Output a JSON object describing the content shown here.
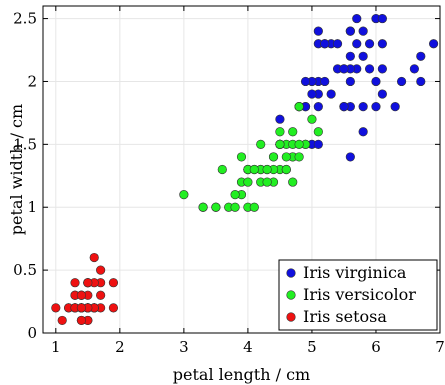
{
  "chart_data": {
    "type": "scatter",
    "title": "",
    "xlabel": "petal length / cm",
    "ylabel": "petal width / cm",
    "xlim": [
      0.8,
      7.0
    ],
    "ylim": [
      0,
      2.6
    ],
    "xticks": [
      1,
      2,
      3,
      4,
      5,
      6,
      7
    ],
    "xtick_labels": [
      "1",
      "2",
      "3",
      "4",
      "5",
      "6",
      "7"
    ],
    "yticks": [
      0,
      0.5,
      1,
      1.5,
      2,
      2.5
    ],
    "ytick_labels": [
      "0",
      "0.5",
      "1",
      "1.5",
      "2",
      "2.5"
    ],
    "grid": true,
    "legend_position": "bottom-right",
    "series": [
      {
        "name": "Iris virginica",
        "color": "#1010dd",
        "points": [
          [
            6.0,
            2.5
          ],
          [
            5.1,
            1.9
          ],
          [
            5.9,
            2.1
          ],
          [
            5.6,
            1.8
          ],
          [
            5.8,
            2.2
          ],
          [
            6.6,
            2.1
          ],
          [
            4.5,
            1.7
          ],
          [
            6.3,
            1.8
          ],
          [
            5.8,
            1.8
          ],
          [
            6.1,
            2.5
          ],
          [
            5.1,
            2.0
          ],
          [
            5.3,
            1.9
          ],
          [
            5.5,
            2.1
          ],
          [
            5.0,
            2.0
          ],
          [
            5.1,
            2.4
          ],
          [
            5.3,
            2.3
          ],
          [
            5.5,
            1.8
          ],
          [
            6.7,
            2.2
          ],
          [
            6.9,
            2.3
          ],
          [
            5.0,
            1.5
          ],
          [
            5.7,
            2.3
          ],
          [
            4.9,
            2.0
          ],
          [
            6.7,
            2.0
          ],
          [
            4.9,
            1.8
          ],
          [
            5.7,
            2.1
          ],
          [
            6.0,
            1.8
          ],
          [
            4.8,
            1.8
          ],
          [
            4.9,
            1.8
          ],
          [
            5.6,
            2.1
          ],
          [
            5.8,
            1.6
          ],
          [
            6.1,
            1.9
          ],
          [
            6.4,
            2.0
          ],
          [
            5.6,
            2.2
          ],
          [
            5.1,
            1.5
          ],
          [
            5.6,
            1.4
          ],
          [
            6.1,
            2.3
          ],
          [
            5.6,
            2.4
          ],
          [
            5.5,
            1.8
          ],
          [
            4.8,
            1.8
          ],
          [
            5.4,
            2.1
          ],
          [
            5.6,
            2.4
          ],
          [
            5.1,
            2.3
          ],
          [
            5.9,
            2.3
          ],
          [
            5.7,
            2.5
          ],
          [
            5.2,
            2.3
          ],
          [
            5.0,
            1.9
          ],
          [
            5.2,
            2.0
          ],
          [
            5.4,
            2.3
          ],
          [
            5.1,
            1.8
          ],
          [
            5.8,
            2.4
          ],
          [
            6.0,
            2.0
          ],
          [
            5.5,
            2.1
          ],
          [
            6.1,
            2.1
          ],
          [
            5.2,
            2.3
          ],
          [
            5.6,
            2.0
          ]
        ]
      },
      {
        "name": "Iris versicolor",
        "color": "#22ee22",
        "points": [
          [
            4.7,
            1.4
          ],
          [
            4.5,
            1.5
          ],
          [
            4.9,
            1.5
          ],
          [
            4.0,
            1.3
          ],
          [
            4.6,
            1.5
          ],
          [
            4.5,
            1.3
          ],
          [
            4.7,
            1.6
          ],
          [
            3.3,
            1.0
          ],
          [
            4.6,
            1.3
          ],
          [
            3.9,
            1.4
          ],
          [
            3.5,
            1.0
          ],
          [
            4.2,
            1.5
          ],
          [
            4.0,
            1.0
          ],
          [
            4.7,
            1.4
          ],
          [
            3.6,
            1.3
          ],
          [
            4.4,
            1.4
          ],
          [
            4.5,
            1.5
          ],
          [
            4.1,
            1.0
          ],
          [
            4.5,
            1.5
          ],
          [
            3.9,
            1.1
          ],
          [
            4.8,
            1.8
          ],
          [
            4.0,
            1.3
          ],
          [
            4.9,
            1.5
          ],
          [
            4.7,
            1.2
          ],
          [
            4.3,
            1.3
          ],
          [
            4.4,
            1.4
          ],
          [
            4.8,
            1.4
          ],
          [
            5.0,
            1.7
          ],
          [
            4.5,
            1.5
          ],
          [
            3.5,
            1.0
          ],
          [
            3.8,
            1.1
          ],
          [
            3.7,
            1.0
          ],
          [
            3.9,
            1.2
          ],
          [
            5.1,
            1.6
          ],
          [
            4.5,
            1.5
          ],
          [
            4.5,
            1.6
          ],
          [
            4.7,
            1.5
          ],
          [
            4.4,
            1.3
          ],
          [
            4.1,
            1.3
          ],
          [
            4.0,
            1.3
          ],
          [
            4.4,
            1.2
          ],
          [
            4.6,
            1.4
          ],
          [
            4.0,
            1.2
          ],
          [
            3.3,
            1.0
          ],
          [
            4.2,
            1.3
          ],
          [
            4.2,
            1.2
          ],
          [
            4.2,
            1.3
          ],
          [
            4.3,
            1.3
          ],
          [
            3.0,
            1.1
          ],
          [
            4.1,
            1.3
          ],
          [
            3.8,
            1.0
          ],
          [
            4.6,
            1.3
          ],
          [
            4.8,
            1.5
          ],
          [
            4.3,
            1.2
          ]
        ]
      },
      {
        "name": "Iris setosa",
        "color": "#ee1111",
        "points": [
          [
            1.4,
            0.2
          ],
          [
            1.4,
            0.2
          ],
          [
            1.3,
            0.2
          ],
          [
            1.5,
            0.2
          ],
          [
            1.4,
            0.2
          ],
          [
            1.7,
            0.4
          ],
          [
            1.4,
            0.3
          ],
          [
            1.5,
            0.2
          ],
          [
            1.4,
            0.2
          ],
          [
            1.5,
            0.1
          ],
          [
            1.5,
            0.2
          ],
          [
            1.6,
            0.2
          ],
          [
            1.4,
            0.1
          ],
          [
            1.1,
            0.1
          ],
          [
            1.2,
            0.2
          ],
          [
            1.5,
            0.4
          ],
          [
            1.3,
            0.4
          ],
          [
            1.4,
            0.3
          ],
          [
            1.7,
            0.3
          ],
          [
            1.5,
            0.3
          ],
          [
            1.7,
            0.2
          ],
          [
            1.5,
            0.4
          ],
          [
            1.0,
            0.2
          ],
          [
            1.7,
            0.5
          ],
          [
            1.9,
            0.2
          ],
          [
            1.6,
            0.2
          ],
          [
            1.6,
            0.4
          ],
          [
            1.5,
            0.2
          ],
          [
            1.4,
            0.2
          ],
          [
            1.6,
            0.2
          ],
          [
            1.6,
            0.2
          ],
          [
            1.5,
            0.4
          ],
          [
            1.5,
            0.1
          ],
          [
            1.4,
            0.2
          ],
          [
            1.5,
            0.2
          ],
          [
            1.2,
            0.2
          ],
          [
            1.3,
            0.2
          ],
          [
            1.4,
            0.1
          ],
          [
            1.3,
            0.2
          ],
          [
            1.5,
            0.2
          ],
          [
            1.3,
            0.3
          ],
          [
            1.3,
            0.3
          ],
          [
            1.3,
            0.2
          ],
          [
            1.6,
            0.6
          ],
          [
            1.9,
            0.4
          ],
          [
            1.4,
            0.3
          ],
          [
            1.6,
            0.2
          ],
          [
            1.4,
            0.2
          ],
          [
            1.5,
            0.2
          ],
          [
            1.4,
            0.2
          ]
        ]
      }
    ]
  }
}
